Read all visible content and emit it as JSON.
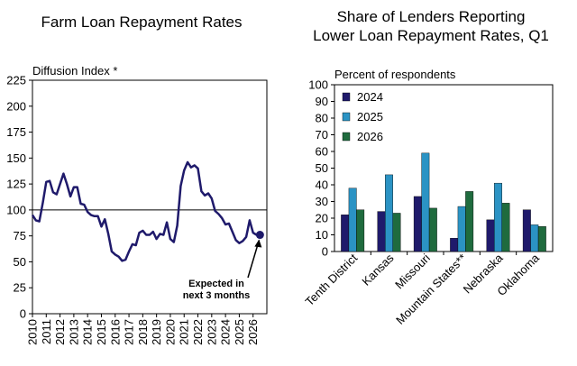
{
  "chart_data": [
    {
      "type": "line",
      "title": "Farm Loan Repayment Rates",
      "ylabel": "Diffusion Index *",
      "ylim": [
        0,
        225
      ],
      "yticks": [
        "0",
        "25",
        "50",
        "75",
        "100",
        "125",
        "150",
        "175",
        "200",
        "225"
      ],
      "xlim": [
        2010,
        2027
      ],
      "xticks": [
        "2010",
        "2011",
        "2012",
        "2013",
        "2014",
        "2015",
        "2016",
        "2017",
        "2018",
        "2019",
        "2020",
        "2021",
        "2022",
        "2023",
        "2024",
        "2025",
        "2026"
      ],
      "reference_line": 100,
      "series": [
        {
          "color": "#1f1a6b",
          "x": [
            2010.0,
            2010.25,
            2010.5,
            2010.75,
            2011.0,
            2011.25,
            2011.5,
            2011.75,
            2012.0,
            2012.25,
            2012.5,
            2012.75,
            2013.0,
            2013.25,
            2013.5,
            2013.75,
            2014.0,
            2014.25,
            2014.5,
            2014.75,
            2015.0,
            2015.25,
            2015.5,
            2015.75,
            2016.0,
            2016.25,
            2016.5,
            2016.75,
            2017.0,
            2017.25,
            2017.5,
            2017.75,
            2018.0,
            2018.25,
            2018.5,
            2018.75,
            2019.0,
            2019.25,
            2019.5,
            2019.75,
            2020.0,
            2020.25,
            2020.5,
            2020.75,
            2021.0,
            2021.25,
            2021.5,
            2021.75,
            2022.0,
            2022.25,
            2022.5,
            2022.75,
            2023.0,
            2023.25,
            2023.5,
            2023.75,
            2024.0,
            2024.25,
            2024.5,
            2024.75,
            2025.0,
            2025.25,
            2025.5,
            2025.75,
            2026.0,
            2026.25
          ],
          "values": [
            95,
            90,
            89,
            107,
            127,
            128,
            117,
            115,
            125,
            135,
            125,
            113,
            122,
            122,
            106,
            105,
            98,
            95,
            94,
            94,
            84,
            91,
            77,
            60,
            57,
            55,
            51,
            52,
            60,
            67,
            66,
            78,
            80,
            76,
            76,
            79,
            72,
            77,
            76,
            88,
            72,
            69,
            85,
            123,
            138,
            146,
            141,
            143,
            140,
            118,
            114,
            116,
            111,
            99,
            96,
            92,
            86,
            87,
            79,
            71,
            68,
            70,
            74,
            90,
            78,
            76
          ]
        }
      ],
      "annotation": {
        "line1": "Expected in",
        "line2": "next 3 months",
        "x": 2026.5,
        "value": 76
      }
    },
    {
      "type": "bar",
      "title_line1": "Share of Lenders Reporting",
      "title_line2": "Lower Loan Repayment Rates, Q1",
      "ylabel": "Percent of respondents",
      "ylim": [
        0,
        100
      ],
      "yticks": [
        "0",
        "10",
        "20",
        "30",
        "40",
        "50",
        "60",
        "70",
        "80",
        "90",
        "100"
      ],
      "categories": [
        "Tenth District",
        "Kansas",
        "Missouri",
        "Mountain States**",
        "Nebraska",
        "Oklahoma"
      ],
      "legend_position": "top-left",
      "series": [
        {
          "name": "2024",
          "color": "#1f1a6b",
          "values": [
            22,
            24,
            33,
            8,
            19,
            25
          ]
        },
        {
          "name": "2025",
          "color": "#2b93c4",
          "values": [
            38,
            46,
            59,
            27,
            41,
            16
          ]
        },
        {
          "name": "2026",
          "color": "#1f6b3e",
          "values": [
            25,
            23,
            26,
            36,
            29,
            15
          ]
        }
      ]
    }
  ]
}
